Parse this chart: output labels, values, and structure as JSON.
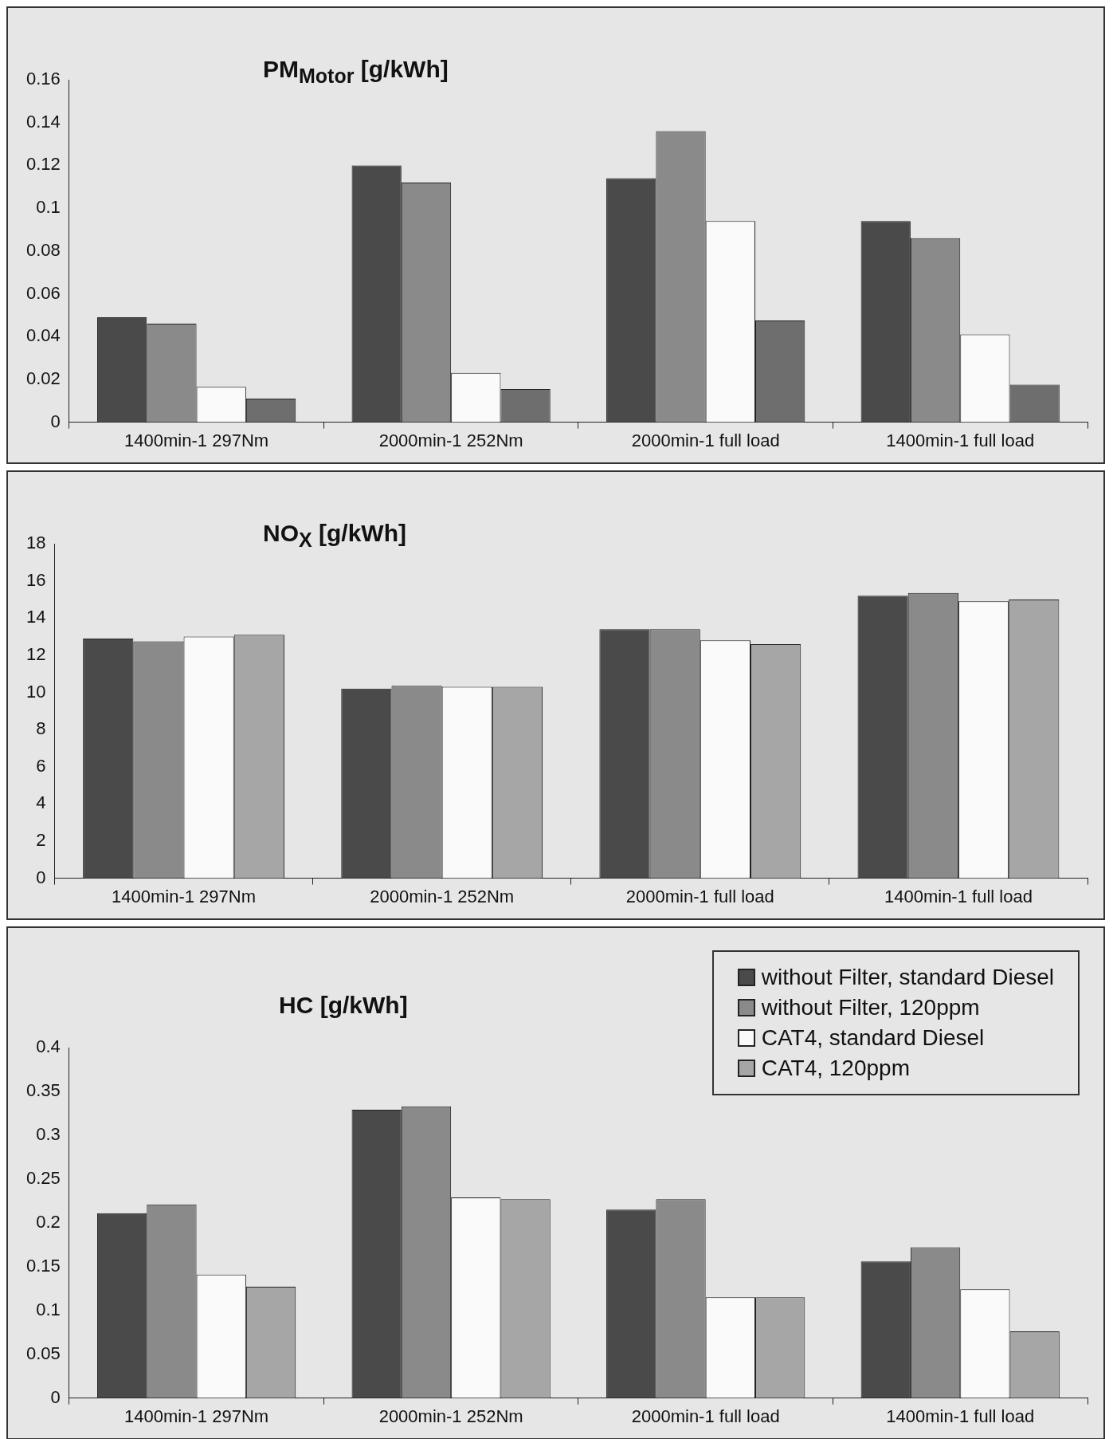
{
  "chart_data": [
    {
      "type": "bar",
      "title": "PM$_{Motor}$ [g/kWh]",
      "categories": [
        "1400min-1 297Nm",
        "2000min-1 252Nm",
        "2000min-1 full load",
        "1400min-1 full load"
      ],
      "series": [
        {
          "color": "#4a4a4a",
          "values": [
            0.049,
            0.12,
            0.114,
            0.094
          ]
        },
        {
          "color": "#8a8a8a",
          "values": [
            0.046,
            0.112,
            0.136,
            0.086
          ]
        },
        {
          "color": "#fafafa",
          "values": [
            0.0165,
            0.023,
            0.094,
            0.041
          ]
        },
        {
          "color": "#6e6e6e",
          "values": [
            0.011,
            0.0155,
            0.0475,
            0.0175
          ]
        }
      ],
      "ylim": [
        0,
        0.16
      ],
      "yticks": [
        0,
        0.02,
        0.04,
        0.06,
        0.08,
        0.1,
        0.12,
        0.14,
        0.16
      ],
      "legend": false
    },
    {
      "type": "bar",
      "title": "NO$_{X}$ [g/kWh]",
      "categories": [
        "1400min-1 297Nm",
        "2000min-1 252Nm",
        "2000min-1 full load",
        "1400min-1 full load"
      ],
      "series": [
        {
          "color": "#4a4a4a",
          "values": [
            12.9,
            10.2,
            13.4,
            15.2
          ]
        },
        {
          "color": "#8a8a8a",
          "values": [
            12.75,
            10.35,
            13.4,
            15.35
          ]
        },
        {
          "color": "#fafafa",
          "values": [
            13.0,
            10.3,
            12.8,
            14.9
          ]
        },
        {
          "color": "#a6a6a6",
          "values": [
            13.1,
            10.3,
            12.6,
            15.0
          ]
        }
      ],
      "ylim": [
        0,
        18
      ],
      "yticks": [
        0,
        2,
        4,
        6,
        8,
        10,
        12,
        14,
        16,
        18
      ],
      "legend": false
    },
    {
      "type": "bar",
      "title": "HC [g/kWh]",
      "categories": [
        "1400min-1 297Nm",
        "2000min-1 252Nm",
        "2000min-1 full load",
        "1400min-1 full load"
      ],
      "series": [
        {
          "name": "without Filter, standard Diesel",
          "color": "#4a4a4a",
          "values": [
            0.211,
            0.329,
            0.215,
            0.156
          ]
        },
        {
          "name": "without Filter, 120ppm",
          "color": "#8a8a8a",
          "values": [
            0.221,
            0.333,
            0.227,
            0.172
          ]
        },
        {
          "name": "CAT4, standard Diesel",
          "color": "#fafafa",
          "values": [
            0.141,
            0.229,
            0.115,
            0.124
          ]
        },
        {
          "name": "CAT4, 120ppm",
          "color": "#a6a6a6",
          "values": [
            0.127,
            0.227,
            0.115,
            0.076
          ]
        }
      ],
      "ylim": [
        0,
        0.4
      ],
      "yticks": [
        0,
        0.05,
        0.1,
        0.15,
        0.2,
        0.25,
        0.3,
        0.35,
        0.4
      ],
      "legend": "top right"
    }
  ]
}
